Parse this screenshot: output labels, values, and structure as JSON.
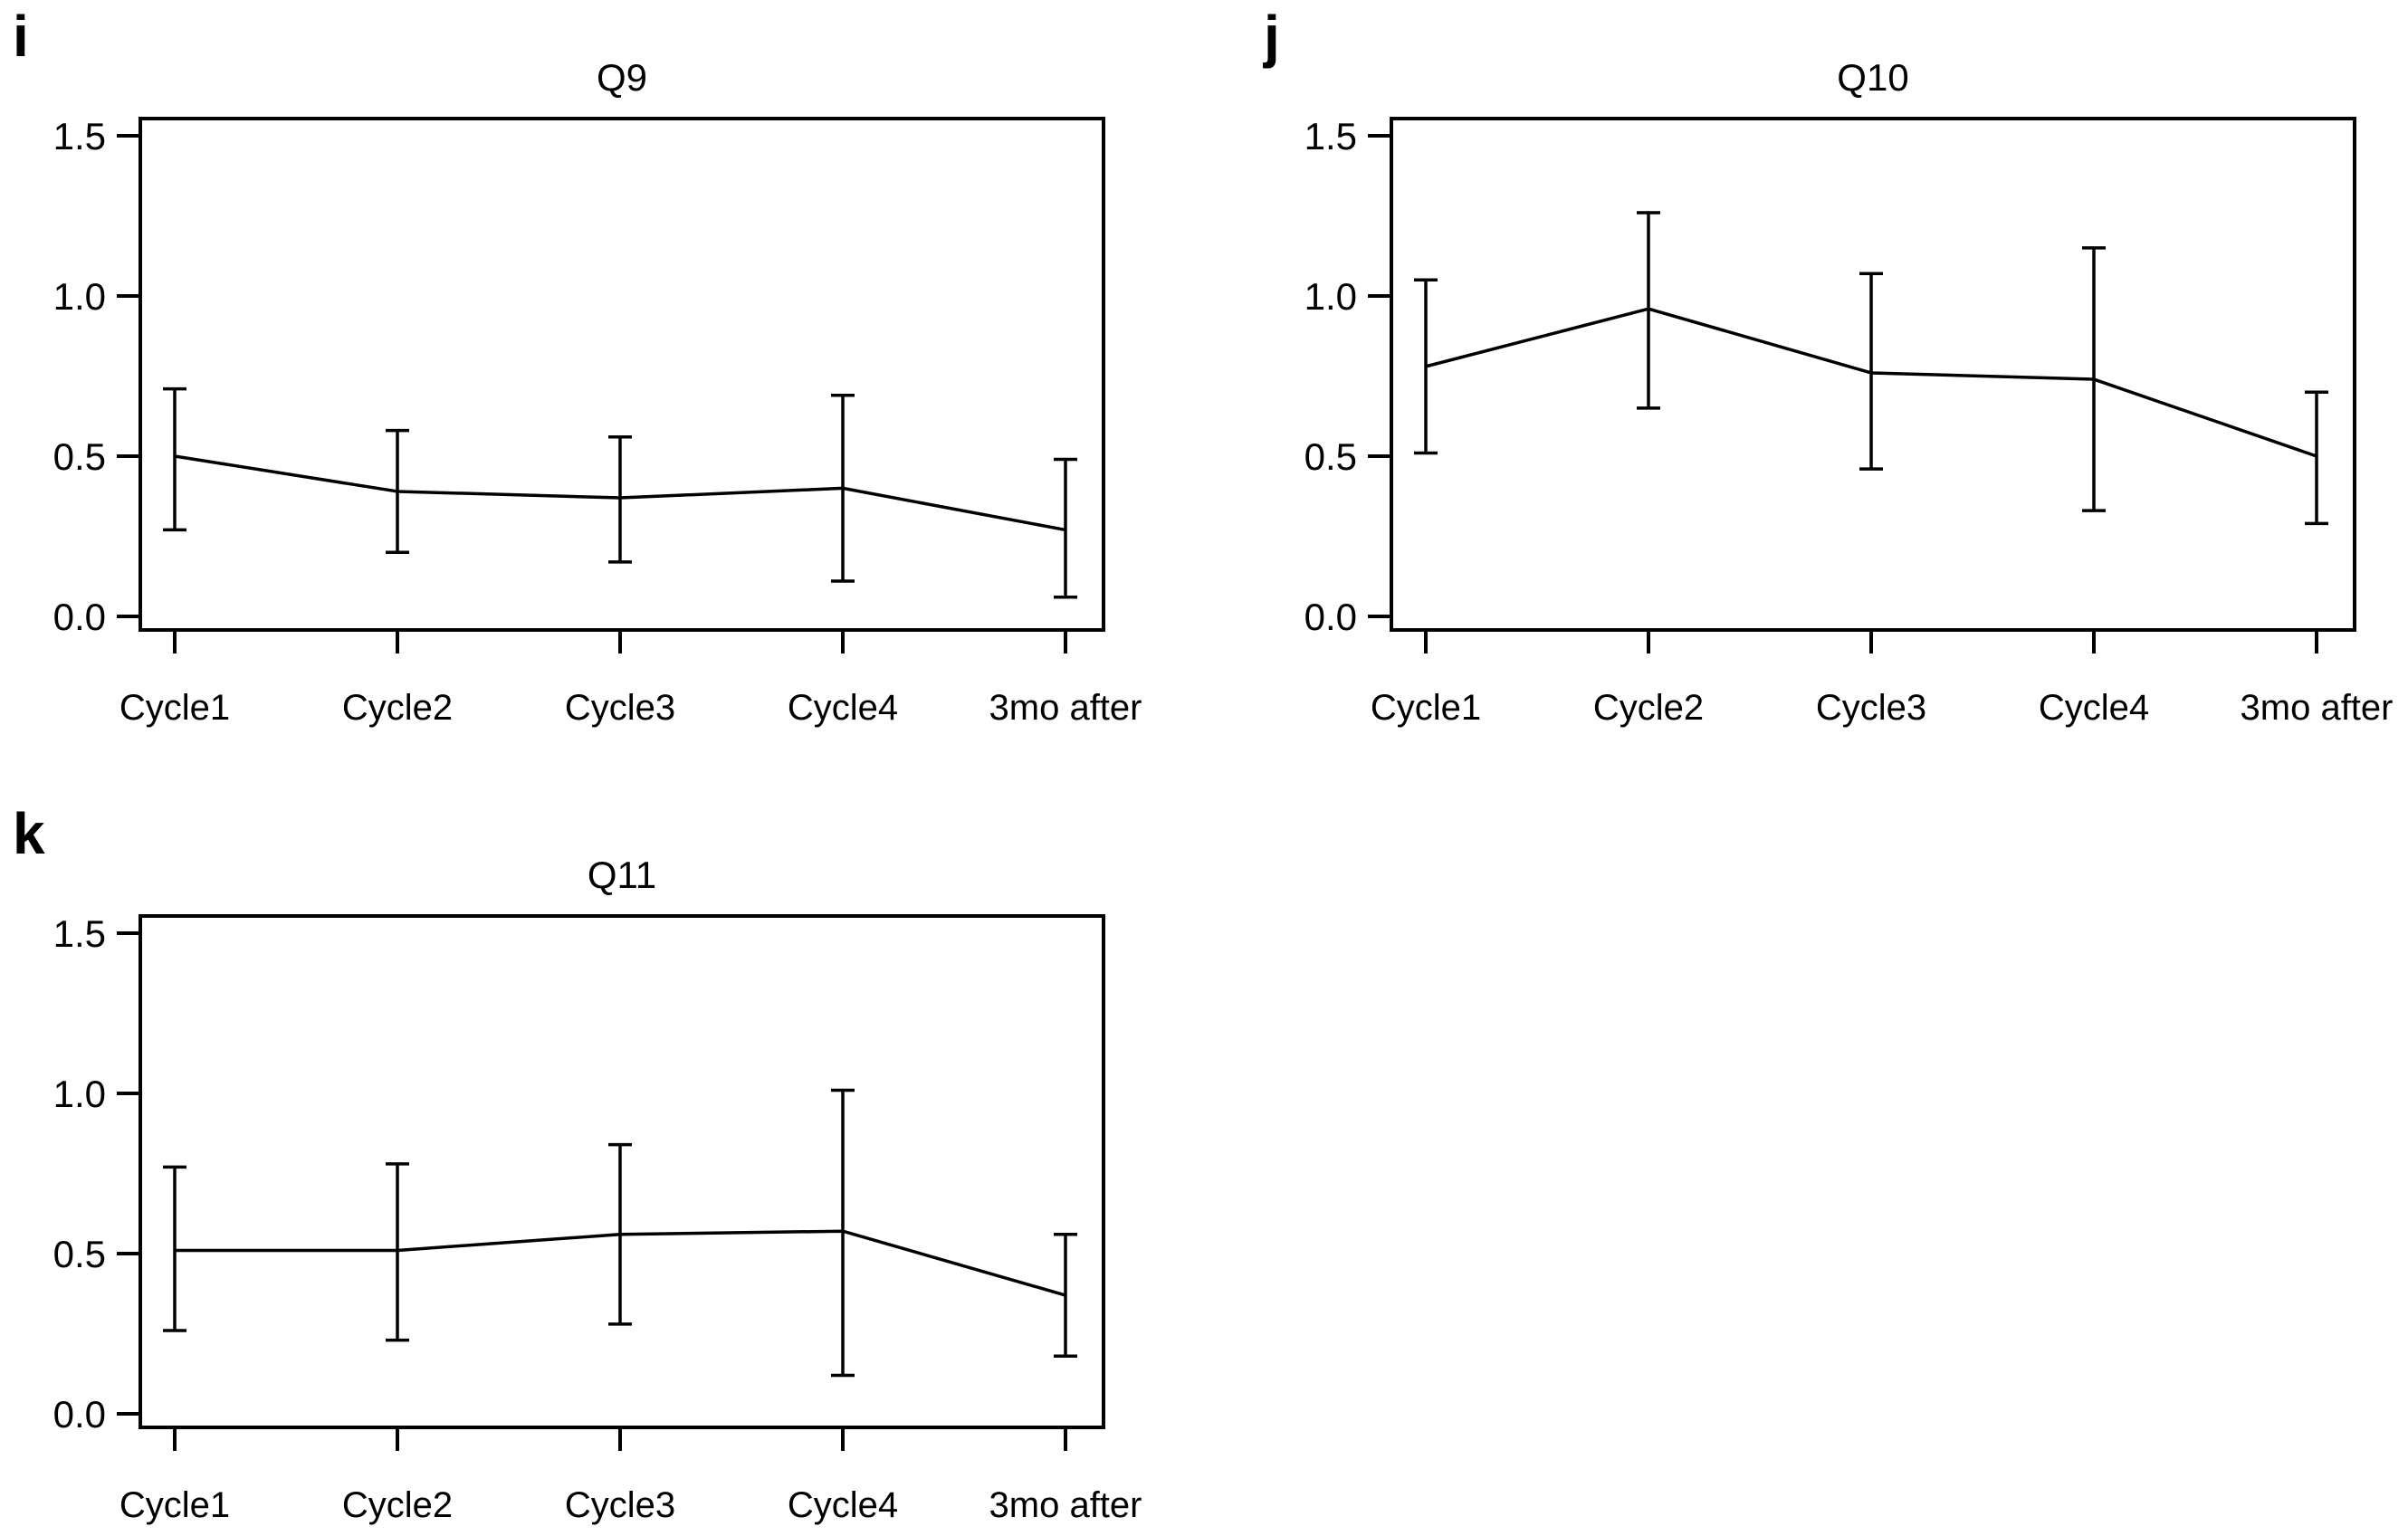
{
  "colors": {
    "line": "#000000",
    "background": "#ffffff"
  },
  "chart_data": [
    {
      "type": "line",
      "panel_letter": "i",
      "title": "Q9",
      "categories": [
        "Cycle1",
        "Cycle2",
        "Cycle3",
        "Cycle4",
        "3mo after"
      ],
      "means": [
        0.5,
        0.39,
        0.37,
        0.4,
        0.27
      ],
      "error_upper": [
        0.71,
        0.58,
        0.56,
        0.69,
        0.49
      ],
      "error_lower": [
        0.27,
        0.2,
        0.17,
        0.11,
        0.06
      ],
      "ylim": [
        -0.04,
        1.55
      ],
      "yticks": [
        0.0,
        0.5,
        1.0,
        1.5
      ],
      "ytick_labels": [
        "0.0",
        "0.5",
        "1.0",
        "1.5"
      ],
      "grid": false,
      "legend": null
    },
    {
      "type": "line",
      "panel_letter": "j",
      "title": "Q10",
      "categories": [
        "Cycle1",
        "Cycle2",
        "Cycle3",
        "Cycle4",
        "3mo after"
      ],
      "means": [
        0.78,
        0.96,
        0.76,
        0.74,
        0.5
      ],
      "error_upper": [
        1.05,
        1.26,
        1.07,
        1.15,
        0.7
      ],
      "error_lower": [
        0.51,
        0.65,
        0.46,
        0.33,
        0.29
      ],
      "ylim": [
        -0.04,
        1.55
      ],
      "yticks": [
        0.0,
        0.5,
        1.0,
        1.5
      ],
      "ytick_labels": [
        "0.0",
        "0.5",
        "1.0",
        "1.5"
      ],
      "grid": false,
      "legend": null
    },
    {
      "type": "line",
      "panel_letter": "k",
      "title": "Q11",
      "categories": [
        "Cycle1",
        "Cycle2",
        "Cycle3",
        "Cycle4",
        "3mo after"
      ],
      "means": [
        0.51,
        0.51,
        0.56,
        0.57,
        0.37
      ],
      "error_upper": [
        0.77,
        0.78,
        0.84,
        1.01,
        0.56
      ],
      "error_lower": [
        0.26,
        0.23,
        0.28,
        0.12,
        0.18
      ],
      "ylim": [
        -0.04,
        1.55
      ],
      "yticks": [
        0.0,
        0.5,
        1.0,
        1.5
      ],
      "ytick_labels": [
        "0.0",
        "0.5",
        "1.0",
        "1.5"
      ],
      "grid": false,
      "legend": null
    }
  ]
}
